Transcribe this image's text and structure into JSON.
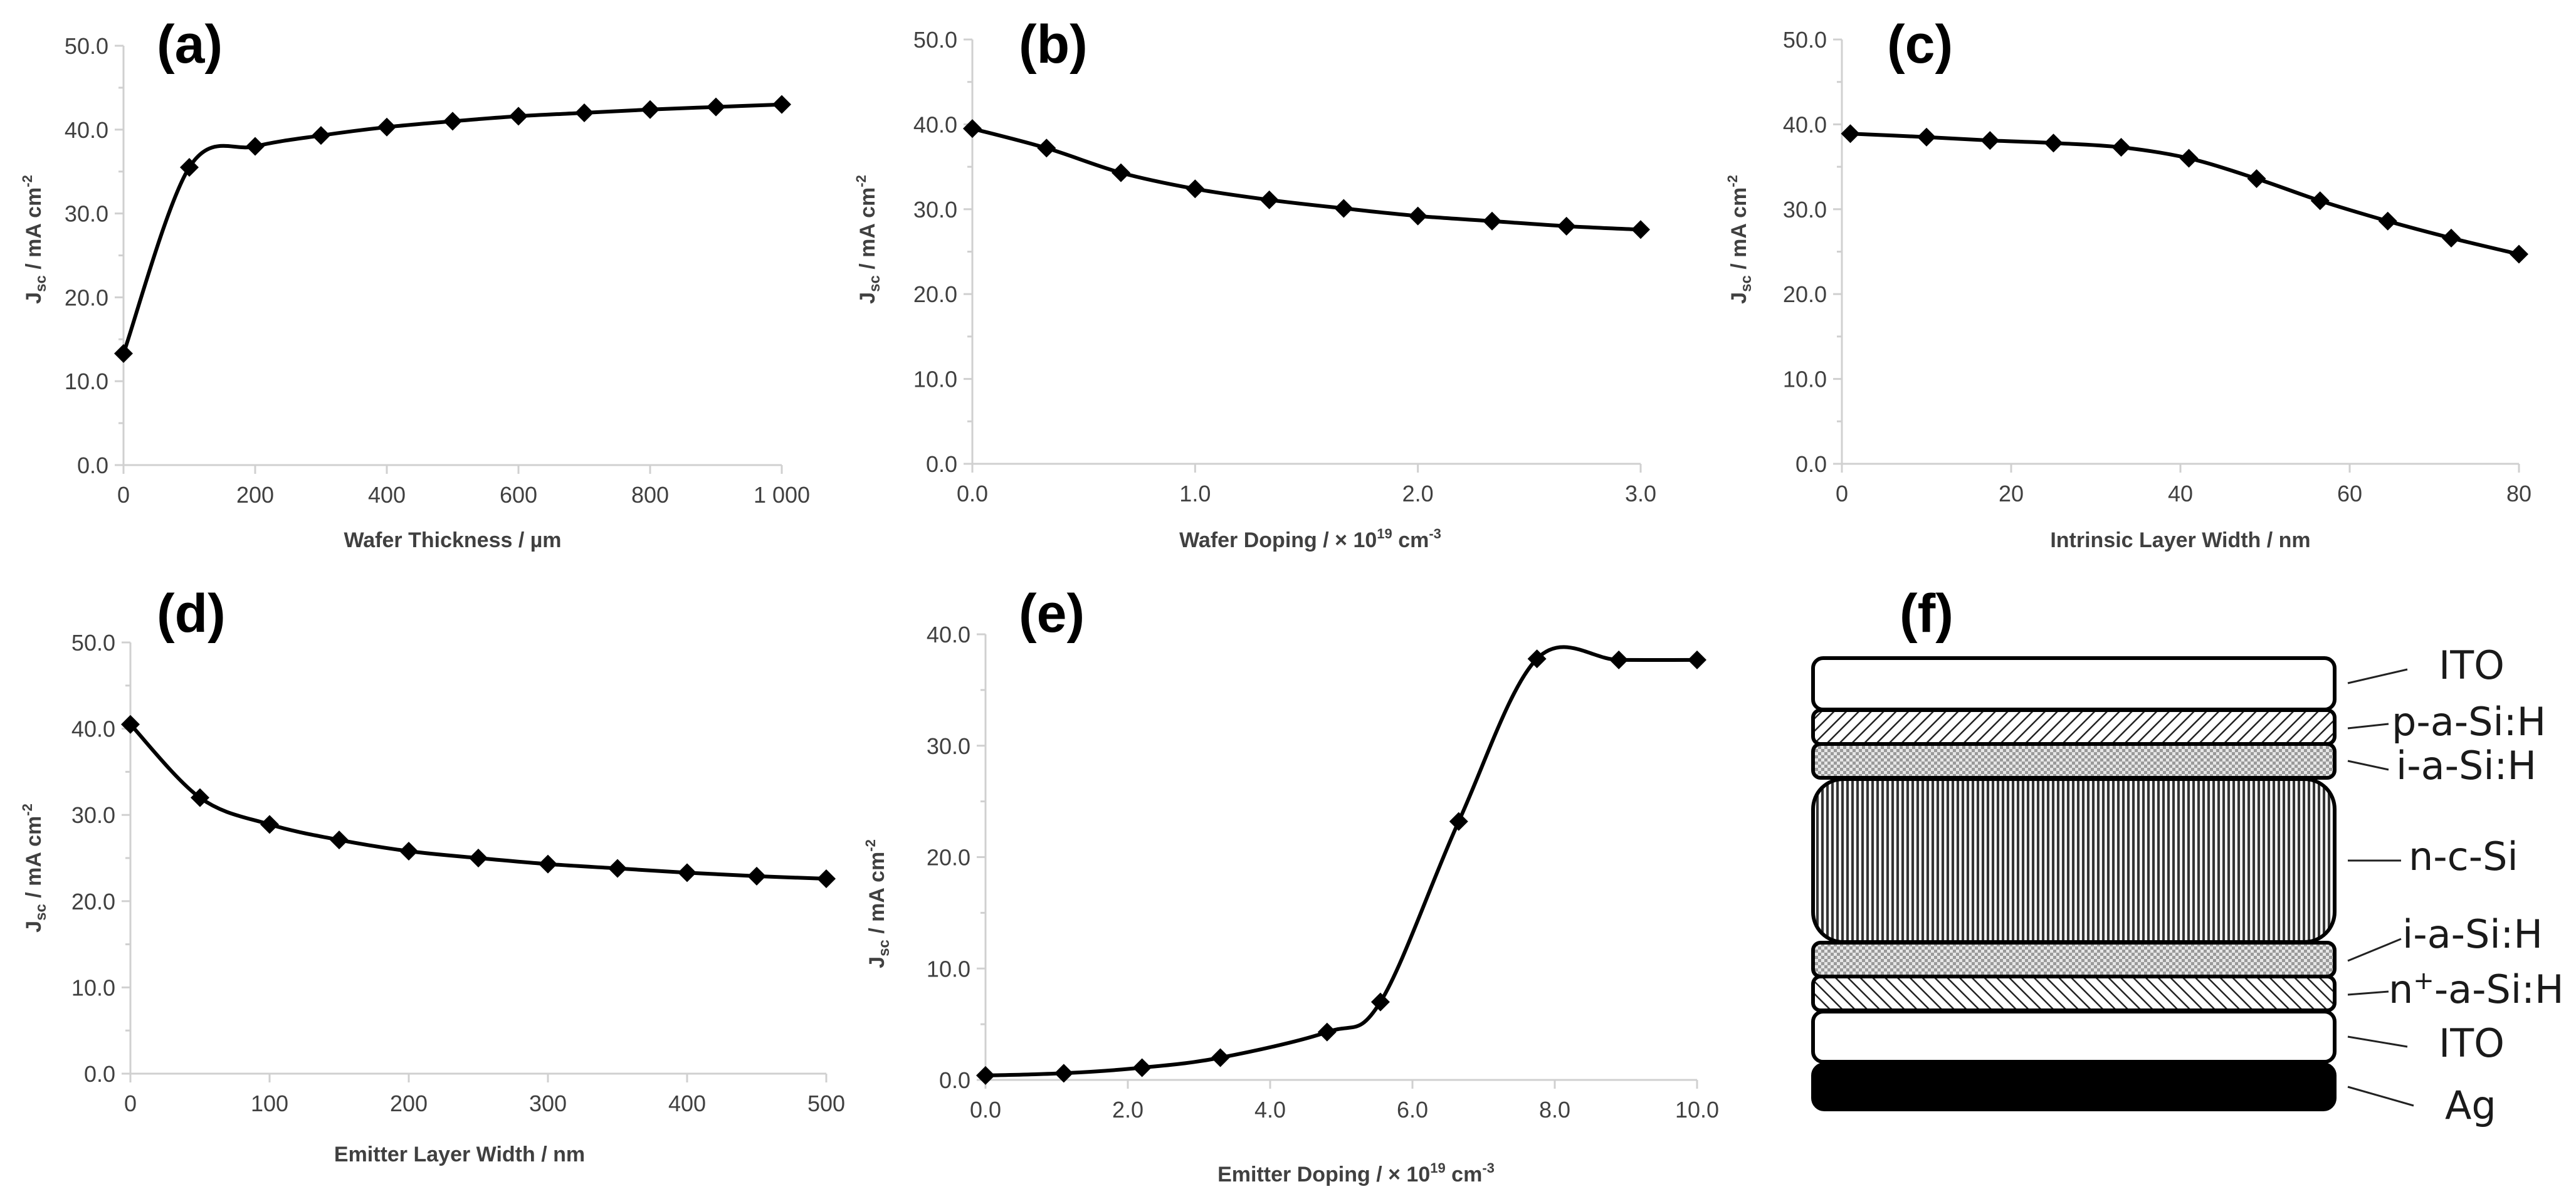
{
  "chart_data": [
    {
      "panel": "(a)",
      "type": "line",
      "xlabel": "Wafer Thickness / µm",
      "ylabel": {
        "main": "J",
        "sub": "sc",
        "rest": " / mA cm",
        "sup": "-2"
      },
      "xlim": [
        0,
        1000
      ],
      "ylim": [
        0,
        50
      ],
      "xticks": [
        0,
        200,
        400,
        600,
        800,
        1000
      ],
      "xtick_labels": [
        "0",
        "200",
        "400",
        "600",
        "800",
        "1 000"
      ],
      "yticks": [
        0,
        10,
        20,
        30,
        40,
        50
      ],
      "ytick_labels": [
        "0.0",
        "10.0",
        "20.0",
        "30.0",
        "40.0",
        "50.0"
      ],
      "x": [
        0,
        100,
        200,
        300,
        400,
        500,
        600,
        700,
        800,
        900,
        1000
      ],
      "y": [
        13.3,
        35.5,
        38.0,
        39.3,
        40.3,
        41.0,
        41.6,
        42.0,
        42.4,
        42.7,
        43.0
      ]
    },
    {
      "panel": "(b)",
      "type": "line",
      "xlabel": {
        "main": "Wafer Doping / × 10",
        "sup": "19",
        "rest": " cm",
        "sup2": "-3"
      },
      "ylabel": {
        "main": "J",
        "sub": "sc",
        "rest": " / mA cm",
        "sup": "-2"
      },
      "xlim": [
        0,
        3
      ],
      "ylim": [
        0,
        50
      ],
      "xticks": [
        0,
        1,
        2,
        3
      ],
      "xtick_labels": [
        "0.0",
        "1.0",
        "2.0",
        "3.0"
      ],
      "yticks": [
        0,
        10,
        20,
        30,
        40,
        50
      ],
      "ytick_labels": [
        "0.0",
        "10.0",
        "20.0",
        "30.0",
        "40.0",
        "50.0"
      ],
      "x": [
        0,
        0.333,
        0.667,
        1.0,
        1.333,
        1.667,
        2.0,
        2.333,
        2.667,
        3.0
      ],
      "y": [
        39.5,
        37.2,
        34.3,
        32.4,
        31.1,
        30.1,
        29.2,
        28.6,
        28.0,
        27.6
      ]
    },
    {
      "panel": "(c)",
      "type": "line",
      "xlabel": "Intrinsic Layer Width / nm",
      "ylabel": {
        "main": "J",
        "sub": "sc",
        "rest": " / mA cm",
        "sup": "-2"
      },
      "xlim": [
        0,
        80
      ],
      "ylim": [
        0,
        50
      ],
      "xticks": [
        0,
        20,
        40,
        60,
        80
      ],
      "xtick_labels": [
        "0",
        "20",
        "40",
        "60",
        "80"
      ],
      "yticks": [
        0,
        10,
        20,
        30,
        40,
        50
      ],
      "ytick_labels": [
        "0.0",
        "10.0",
        "20.0",
        "30.0",
        "40.0",
        "50.0"
      ],
      "x": [
        1,
        10,
        17.5,
        25,
        33,
        41,
        49,
        56.5,
        64.5,
        72,
        80
      ],
      "y": [
        38.9,
        38.5,
        38.1,
        37.8,
        37.3,
        36.0,
        33.6,
        31.0,
        28.6,
        26.6,
        24.7
      ]
    },
    {
      "panel": "(d)",
      "type": "line",
      "xlabel": "Emitter Layer Width / nm",
      "ylabel": {
        "main": "J",
        "sub": "sc",
        "rest": " / mA cm",
        "sup": "-2"
      },
      "xlim": [
        0,
        500
      ],
      "ylim": [
        0,
        50
      ],
      "xticks": [
        0,
        100,
        200,
        300,
        400,
        500
      ],
      "xtick_labels": [
        "0",
        "100",
        "200",
        "300",
        "400",
        "500"
      ],
      "yticks": [
        0,
        10,
        20,
        30,
        40,
        50
      ],
      "ytick_labels": [
        "0.0",
        "10.0",
        "20.0",
        "30.0",
        "40.0",
        "50.0"
      ],
      "x": [
        0,
        50,
        100,
        150,
        200,
        250,
        300,
        350,
        400,
        450,
        500
      ],
      "y": [
        40.5,
        32.0,
        28.9,
        27.1,
        25.8,
        25.0,
        24.3,
        23.8,
        23.3,
        22.9,
        22.6
      ]
    },
    {
      "panel": "(e)",
      "type": "line",
      "xlabel": {
        "main": "Emitter Doping / × 10",
        "sup": "19",
        "rest": " cm",
        "sup2": "-3"
      },
      "ylabel": {
        "main": "J",
        "sub": "sc",
        "rest": " / mA cm",
        "sup": "-2"
      },
      "xlim": [
        0,
        10
      ],
      "ylim": [
        0,
        40
      ],
      "xticks": [
        0,
        2,
        4,
        6,
        8,
        10
      ],
      "xtick_labels": [
        "0.0",
        "2.0",
        "4.0",
        "6.0",
        "8.0",
        "10.0"
      ],
      "yticks": [
        0,
        10,
        20,
        30,
        40
      ],
      "ytick_labels": [
        "0.0",
        "10.0",
        "20.0",
        "30.0",
        "40.0"
      ],
      "x": [
        0,
        1.1,
        2.2,
        3.3,
        4.8,
        5.55,
        6.65,
        7.75,
        8.9,
        10.0
      ],
      "y": [
        0.4,
        0.6,
        1.1,
        2.0,
        4.3,
        7.0,
        23.2,
        37.8,
        37.7,
        37.7
      ]
    }
  ],
  "stack": {
    "panel": "(f)",
    "layers": [
      {
        "name": "ito-top",
        "label": "ITO",
        "fill": "plain"
      },
      {
        "name": "p-a-si",
        "label": "p-a-Si:H",
        "fill": "hatch"
      },
      {
        "name": "i-a-si-top",
        "label": "i-a-Si:H",
        "fill": "dots"
      },
      {
        "name": "n-c-si",
        "label": "n-c-Si",
        "fill": "vlines"
      },
      {
        "name": "i-a-si-bottom",
        "label": "i-a-Si:H",
        "fill": "dots"
      },
      {
        "name": "n-plus-a-si",
        "label_main": "n",
        "label_sup": "+",
        "label_rest": "-a-Si:H",
        "fill": "hatch-rev"
      },
      {
        "name": "ito-bottom",
        "label": "ITO",
        "fill": "plain"
      },
      {
        "name": "ag",
        "label": "Ag",
        "fill": "solid"
      }
    ]
  },
  "colors": {
    "line": "#000000",
    "axis": "#d0d0d0",
    "tick_text": "#404040"
  }
}
